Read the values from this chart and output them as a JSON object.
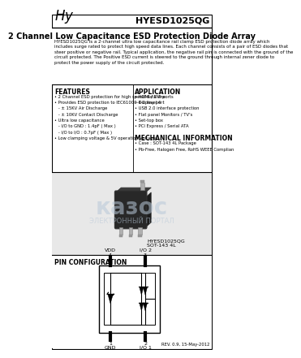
{
  "title": "HYESD1025QG",
  "subtitle": "2 Channel Low Capacitance ESD Protection Diode Array",
  "description": "HYESD1025QG is a 2-channel ultra low capacitance rail clamp ESD protection diode array which\nincludes surge rated to protect high speed data lines. Each channel consists of a pair of ESD diodes that\nsteer positive or negative rail. Typical application, the negative rail pin is connected with the ground of the\ncircuit protected. The Positive ESD current is steered to the ground through internal zener diode to\nprotect the power supply of the circuit protected.",
  "features_title": "FEATURES",
  "features": [
    "• 2 Channel ESD protection for high speed data line",
    "• Provides ESD protection to IEC61000-4-2 level 4",
    "   - ± 15KV Air Discharge",
    "   - ± 10KV Contact Discharge",
    "• Ultra low capacitance",
    "   - I/O to GND : 1.4pF ( Max )",
    "   - I/O to I/O : 0.7pF ( Max )",
    "• Low clamping voltage & 5V operation voltage"
  ],
  "app_title": "APPLICATION",
  "applications": [
    "• HDMI / DVI ports",
    "• Display port",
    "• USB 2.0 interface protection",
    "• Flat panel Monitors / TV's",
    "• Set-top box",
    "• PCI Express / Serial ATA"
  ],
  "mech_title": "MECHANICAL INFORMATION",
  "mechanical": [
    "• Case : SOT-143 4L Package",
    "• Pb-Free, Halogen Free, RoHS WEEE Complian"
  ],
  "package_label1": "HYESD1025QG",
  "package_label2": "SOT-143 4L",
  "pin_config_title": "PIN CONFIGURATION",
  "rev_text": "REV. 0.9, 15-May-2012",
  "white": "#ffffff",
  "black": "#000000",
  "light_gray": "#e8e8e8",
  "mid_gray": "#d0d0d0",
  "watermark1": "казос",
  "watermark2": "ЭЛЕКТРОННЫЙ ПОРТАЛ"
}
